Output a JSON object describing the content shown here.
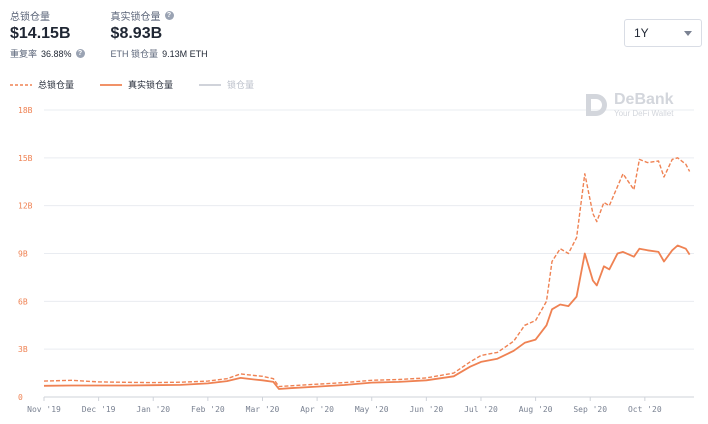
{
  "header": {
    "total_tvl": {
      "label": "总锁仓量",
      "value": "$14.15B",
      "ratio_label": "重复率",
      "ratio_value": "36.88%"
    },
    "real_tvl": {
      "label": "真实锁仓量",
      "value": "$8.93B",
      "eth_label": "ETH 锁仓量",
      "eth_value": "9.13M ETH"
    }
  },
  "range_selector": {
    "value": "1Y"
  },
  "watermark": {
    "name": "DeBank",
    "tagline": "Your DeFi Wallet"
  },
  "colors": {
    "accent": "#ef8253",
    "grid": "#e9ecf1",
    "disabled": "#c9cdd4"
  },
  "chart_data": {
    "type": "line",
    "legend": [
      "总锁仓量",
      "真实锁仓量",
      "锁仓量"
    ],
    "x_tick_labels": [
      "Nov '19",
      "Dec '19",
      "Jan '20",
      "Feb '20",
      "Mar '20",
      "Apr '20",
      "May '20",
      "Jun '20",
      "Jul '20",
      "Aug '20",
      "Sep '20",
      "Oct '20"
    ],
    "y_tick_labels": [
      "0",
      "3B",
      "6B",
      "9B",
      "12B",
      "15B",
      "18B"
    ],
    "ylim": [
      0,
      18
    ],
    "x_range": [
      0,
      11.9
    ],
    "series": [
      {
        "name": "总锁仓量",
        "style": "dashed",
        "x": [
          0,
          0.5,
          1,
          1.5,
          2,
          2.5,
          3,
          3.35,
          3.6,
          3.85,
          4,
          4.2,
          4.3,
          4.5,
          5,
          5.5,
          6,
          6.5,
          7,
          7.5,
          7.8,
          8,
          8.3,
          8.6,
          8.8,
          9,
          9.2,
          9.3,
          9.45,
          9.6,
          9.75,
          9.9,
          10.05,
          10.12,
          10.25,
          10.35,
          10.5,
          10.6,
          10.8,
          10.9,
          11.05,
          11.25,
          11.35,
          11.5,
          11.6,
          11.75,
          11.82
        ],
        "values": [
          1.0,
          1.05,
          0.95,
          0.92,
          0.9,
          0.93,
          1.0,
          1.15,
          1.45,
          1.35,
          1.3,
          1.15,
          0.65,
          0.7,
          0.8,
          0.9,
          1.05,
          1.1,
          1.2,
          1.5,
          2.2,
          2.6,
          2.8,
          3.5,
          4.5,
          4.8,
          6.0,
          8.5,
          9.3,
          9.0,
          10.0,
          14.0,
          11.5,
          11.0,
          12.2,
          12.0,
          13.2,
          14.0,
          13.0,
          14.9,
          14.7,
          14.8,
          13.8,
          14.9,
          15.0,
          14.6,
          14.15
        ]
      },
      {
        "name": "真实锁仓量",
        "style": "solid",
        "x": [
          0,
          0.5,
          1,
          1.5,
          2,
          2.5,
          3,
          3.35,
          3.6,
          3.85,
          4,
          4.2,
          4.3,
          4.5,
          5,
          5.5,
          6,
          6.5,
          7,
          7.5,
          7.8,
          8,
          8.3,
          8.6,
          8.8,
          9,
          9.2,
          9.3,
          9.45,
          9.6,
          9.75,
          9.9,
          10.05,
          10.12,
          10.25,
          10.35,
          10.5,
          10.6,
          10.8,
          10.9,
          11.05,
          11.25,
          11.35,
          11.5,
          11.6,
          11.75,
          11.82
        ],
        "values": [
          0.7,
          0.72,
          0.72,
          0.72,
          0.74,
          0.76,
          0.85,
          1.0,
          1.2,
          1.1,
          1.05,
          0.95,
          0.5,
          0.55,
          0.65,
          0.75,
          0.9,
          0.95,
          1.05,
          1.3,
          1.9,
          2.2,
          2.4,
          2.9,
          3.4,
          3.6,
          4.5,
          5.5,
          5.8,
          5.7,
          6.3,
          9.0,
          7.3,
          7.0,
          8.2,
          8.0,
          9.0,
          9.1,
          8.8,
          9.3,
          9.2,
          9.1,
          8.5,
          9.2,
          9.5,
          9.3,
          8.93
        ]
      }
    ]
  }
}
